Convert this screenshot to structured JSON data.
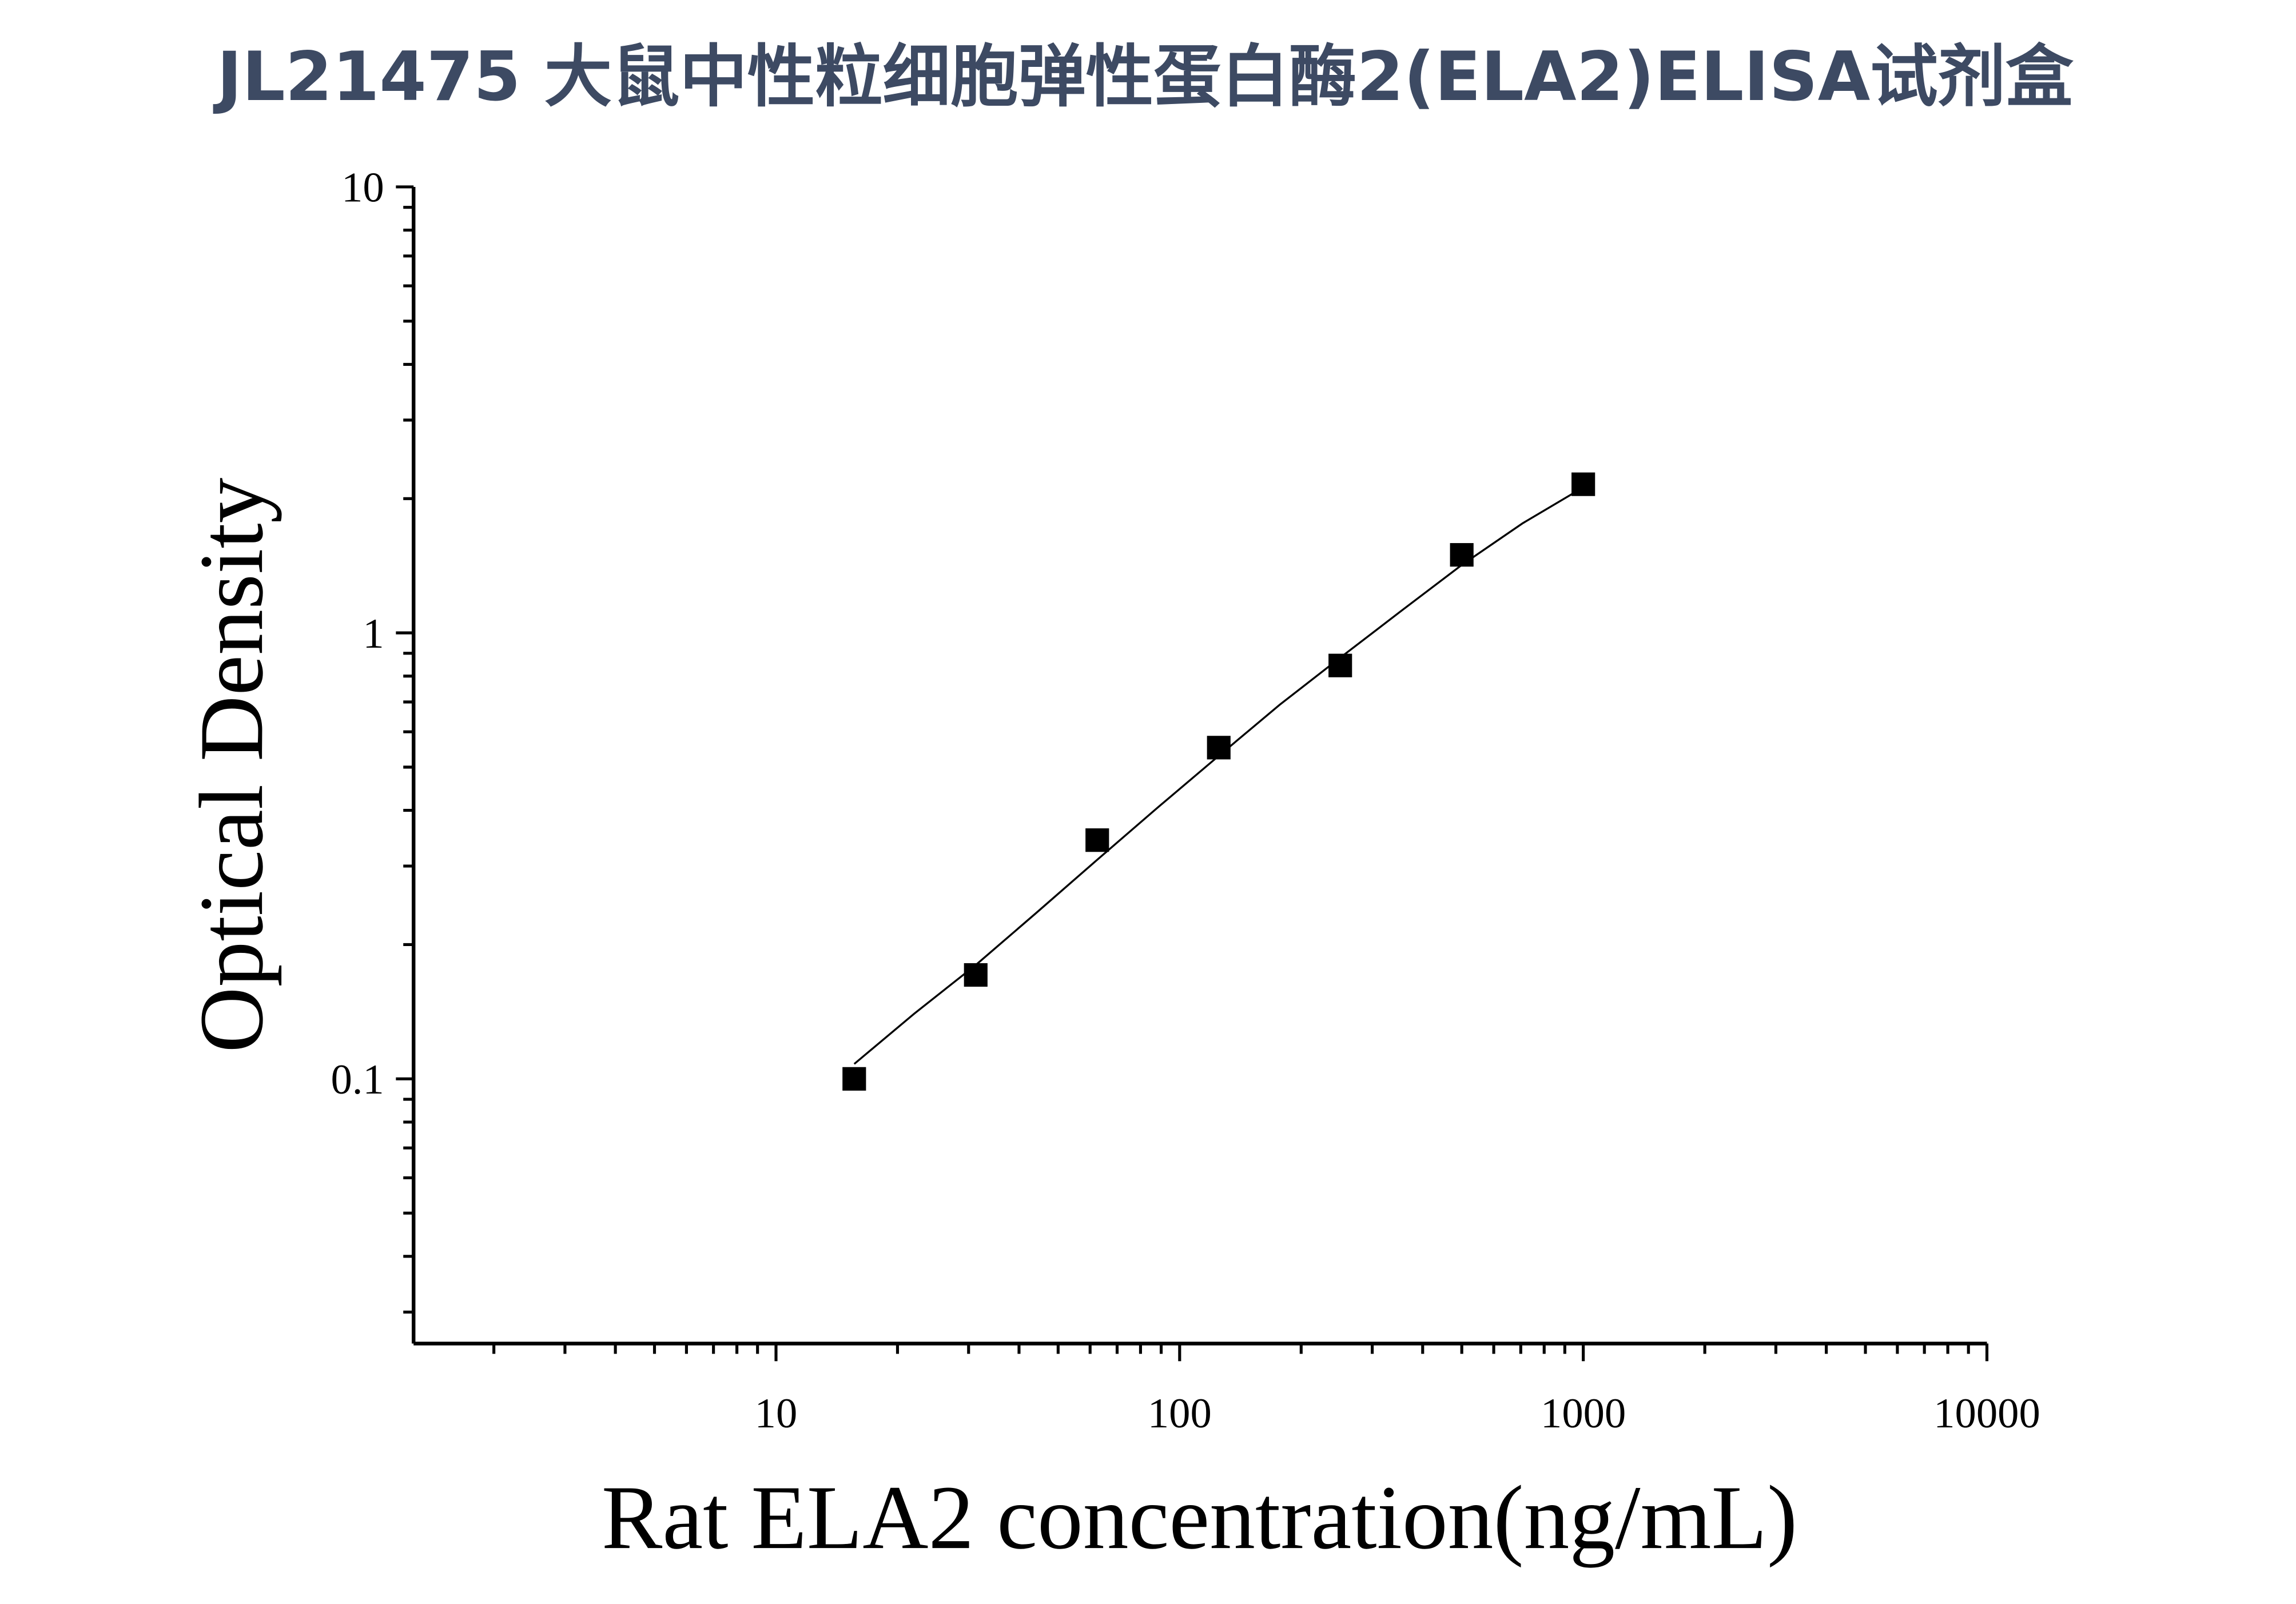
{
  "chart_data": {
    "type": "scatter",
    "title": "JL21475 大鼠中性粒细胞弹性蛋白酶2(ELA2)ELISA试剂盒",
    "x_label": "Rat ELA2 concentration(ng/mL)",
    "y_label": "Optical Density",
    "x": [
      15.625,
      31.25,
      62.5,
      125,
      250,
      500,
      1000
    ],
    "values": [
      0.1,
      0.171,
      0.343,
      0.553,
      0.845,
      1.496,
      2.154
    ],
    "color": "#000000",
    "fit": {
      "x": [
        15.625,
        22,
        31.25,
        44,
        62.5,
        88,
        125,
        177,
        250,
        354,
        500,
        707,
        1000
      ],
      "values": [
        0.108,
        0.14,
        0.18,
        0.235,
        0.31,
        0.405,
        0.53,
        0.69,
        0.88,
        1.12,
        1.42,
        1.76,
        2.12
      ]
    },
    "xlim": [
      1.265,
      10000
    ],
    "ylim": [
      0.0255,
      10
    ],
    "x_log": true,
    "y_log": true,
    "xticks": [
      10,
      100,
      1000,
      10000
    ],
    "yticks": [
      0.1,
      1,
      10
    ],
    "xticks_minor": [
      2,
      3,
      4,
      5,
      6,
      7,
      8,
      9,
      20,
      30,
      40,
      50,
      60,
      70,
      80,
      90,
      200,
      300,
      400,
      500,
      600,
      700,
      800,
      900,
      2000,
      3000,
      4000,
      5000,
      6000,
      7000,
      8000,
      9000
    ],
    "yticks_minor": [
      0.03,
      0.04,
      0.05,
      0.06,
      0.07,
      0.08,
      0.09,
      0.2,
      0.3,
      0.4,
      0.5,
      0.6,
      0.7,
      0.8,
      0.9,
      2,
      3,
      4,
      5,
      6,
      7,
      8,
      9
    ],
    "grid": false
  }
}
